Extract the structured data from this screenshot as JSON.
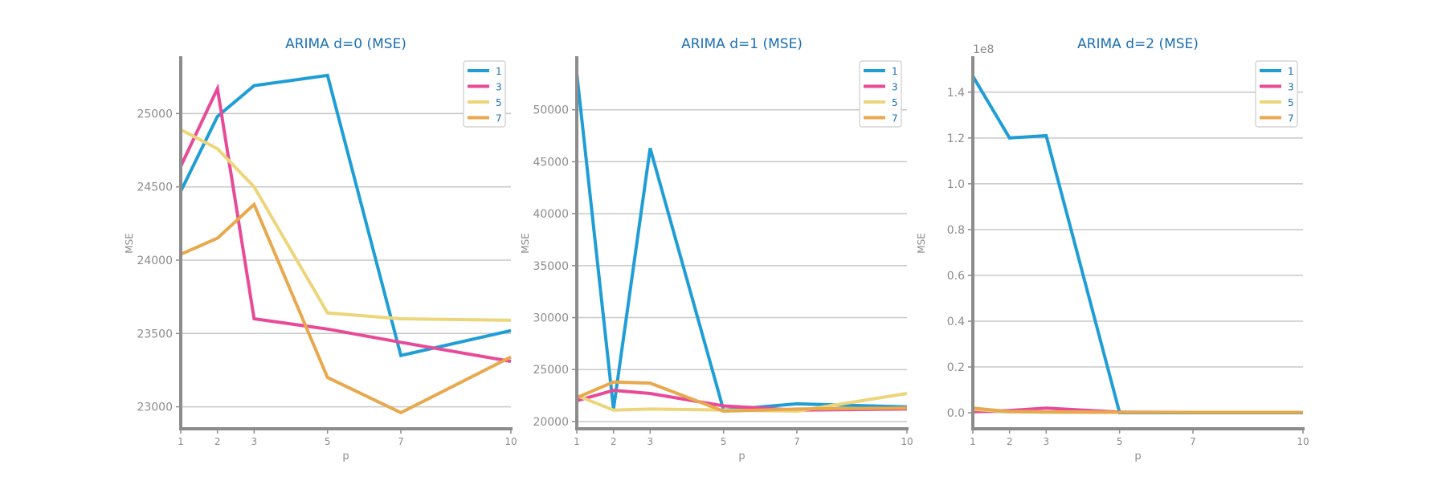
{
  "colors": {
    "title": "#1a6fb0",
    "axis": "#8c8c8c",
    "grid": "#c8c8c8",
    "tick_label": "#8c8c8c",
    "series": [
      "#1f9ed6",
      "#e84a98",
      "#edd57a",
      "#e8a84c"
    ]
  },
  "chart_data": [
    {
      "type": "line",
      "title": "ARIMA d=0 (MSE)",
      "xlabel": "p",
      "ylabel": "MSE",
      "x": [
        1,
        2,
        3,
        5,
        7,
        10
      ],
      "xlim": [
        1,
        10
      ],
      "ylim": [
        22850,
        25380
      ],
      "yticks": [
        23000,
        23500,
        24000,
        24500,
        25000
      ],
      "ytick_labels": [
        "23000",
        "23500",
        "24000",
        "24500",
        "25000"
      ],
      "xtick_labels": [
        "1",
        "2",
        "3",
        "5",
        "7",
        "10"
      ],
      "offset_label": "",
      "grid": true,
      "legend_position": "top-right",
      "series": [
        {
          "name": "1",
          "values": [
            24470,
            24980,
            25190,
            25260,
            23350,
            23520
          ]
        },
        {
          "name": "3",
          "values": [
            24640,
            25170,
            23600,
            23530,
            23440,
            23310
          ]
        },
        {
          "name": "5",
          "values": [
            24890,
            24760,
            24500,
            23640,
            23600,
            23590
          ]
        },
        {
          "name": "7",
          "values": [
            24040,
            24150,
            24380,
            23200,
            22960,
            23340
          ]
        }
      ]
    },
    {
      "type": "line",
      "title": "ARIMA d=1 (MSE)",
      "xlabel": "p",
      "ylabel": "MSE",
      "x": [
        1,
        2,
        3,
        5,
        7,
        10
      ],
      "xlim": [
        1,
        10
      ],
      "ylim": [
        19300,
        55000
      ],
      "yticks": [
        20000,
        25000,
        30000,
        35000,
        40000,
        45000,
        50000
      ],
      "ytick_labels": [
        "20000",
        "25000",
        "30000",
        "35000",
        "40000",
        "45000",
        "50000"
      ],
      "xtick_labels": [
        "1",
        "2",
        "3",
        "5",
        "7",
        "10"
      ],
      "offset_label": "",
      "grid": true,
      "legend_position": "top-right",
      "series": [
        {
          "name": "1",
          "values": [
            53500,
            21200,
            46300,
            21100,
            21700,
            21400
          ]
        },
        {
          "name": "3",
          "values": [
            22000,
            23000,
            22700,
            21500,
            21100,
            21200
          ]
        },
        {
          "name": "5",
          "values": [
            22500,
            21100,
            21200,
            21100,
            21000,
            22700
          ]
        },
        {
          "name": "7",
          "values": [
            22300,
            23800,
            23700,
            21000,
            21200,
            21300
          ]
        }
      ]
    },
    {
      "type": "line",
      "title": "ARIMA d=2 (MSE)",
      "xlabel": "p",
      "ylabel": "MSE",
      "x": [
        1,
        2,
        3,
        5,
        7,
        10
      ],
      "xlim": [
        1,
        10
      ],
      "ylim": [
        -0.07,
        1.55
      ],
      "yticks": [
        0.0,
        0.2,
        0.4,
        0.6,
        0.8,
        1.0,
        1.2,
        1.4
      ],
      "ytick_labels": [
        "0.0",
        "0.2",
        "0.4",
        "0.6",
        "0.8",
        "1.0",
        "1.2",
        "1.4"
      ],
      "xtick_labels": [
        "1",
        "2",
        "3",
        "5",
        "7",
        "10"
      ],
      "offset_label": "1e8",
      "grid": true,
      "legend_position": "top-right",
      "series": [
        {
          "name": "1",
          "values": [
            1.47,
            1.2,
            1.21,
            0.0,
            0.0,
            0.0
          ]
        },
        {
          "name": "3",
          "values": [
            0.005,
            0.01,
            0.02,
            0.003,
            0.002,
            0.002
          ]
        },
        {
          "name": "5",
          "values": [
            0.015,
            0.005,
            0.004,
            0.002,
            0.002,
            0.002
          ]
        },
        {
          "name": "7",
          "values": [
            0.02,
            0.005,
            0.003,
            0.002,
            0.002,
            0.002
          ]
        }
      ]
    }
  ]
}
